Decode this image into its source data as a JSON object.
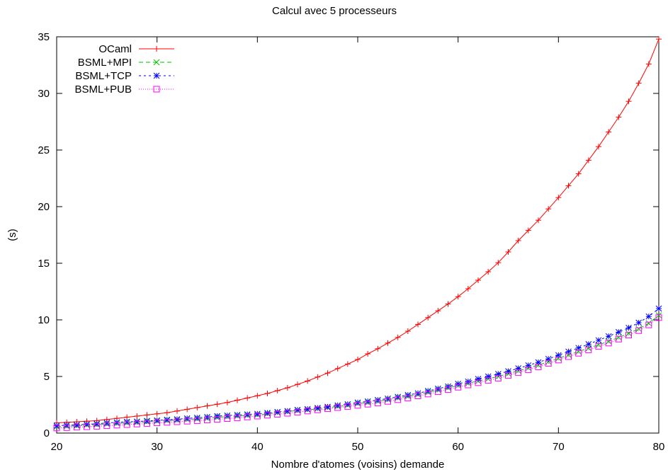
{
  "chart_data": {
    "type": "line",
    "title": "Calcul avec 5 processeurs",
    "xlabel": "Nombre d'atomes (voisins) demande",
    "ylabel": "(s)",
    "xlim": [
      20,
      80
    ],
    "ylim": [
      0,
      35
    ],
    "xticks": [
      20,
      30,
      40,
      50,
      60,
      70,
      80
    ],
    "yticks": [
      0,
      5,
      10,
      15,
      20,
      25,
      30,
      35
    ],
    "grid": false,
    "legend_position": "top-left",
    "x": [
      20,
      21,
      22,
      23,
      24,
      25,
      26,
      27,
      28,
      29,
      30,
      31,
      32,
      33,
      34,
      35,
      36,
      37,
      38,
      39,
      40,
      41,
      42,
      43,
      44,
      45,
      46,
      47,
      48,
      49,
      50,
      51,
      52,
      53,
      54,
      55,
      56,
      57,
      58,
      59,
      60,
      61,
      62,
      63,
      64,
      65,
      66,
      67,
      68,
      69,
      70,
      71,
      72,
      73,
      74,
      75,
      76,
      77,
      78,
      79,
      80
    ],
    "series": [
      {
        "name": "OCaml",
        "color": "#ff0000",
        "dash": "solid",
        "marker": "plus",
        "values": [
          0.9,
          0.95,
          1.0,
          1.05,
          1.1,
          1.2,
          1.3,
          1.4,
          1.5,
          1.6,
          1.7,
          1.8,
          1.95,
          2.1,
          2.25,
          2.4,
          2.55,
          2.7,
          2.9,
          3.1,
          3.3,
          3.5,
          3.75,
          4.0,
          4.3,
          4.6,
          4.95,
          5.3,
          5.7,
          6.1,
          6.5,
          7.0,
          7.45,
          7.95,
          8.45,
          9.0,
          9.6,
          10.2,
          10.8,
          11.4,
          12.05,
          12.75,
          13.5,
          14.25,
          15.05,
          16.0,
          17.0,
          17.9,
          18.8,
          19.8,
          20.8,
          21.85,
          22.9,
          24.1,
          25.3,
          26.6,
          27.9,
          29.3,
          30.9,
          32.6,
          34.8
        ]
      },
      {
        "name": "BSML+MPI",
        "color": "#00c000",
        "dash": "dashed",
        "marker": "x",
        "values": [
          0.55,
          0.6,
          0.65,
          0.7,
          0.75,
          0.8,
          0.85,
          0.9,
          0.95,
          1.0,
          1.05,
          1.1,
          1.15,
          1.2,
          1.25,
          1.3,
          1.4,
          1.45,
          1.5,
          1.55,
          1.6,
          1.7,
          1.8,
          1.9,
          2.0,
          2.05,
          2.15,
          2.25,
          2.35,
          2.45,
          2.6,
          2.7,
          2.8,
          2.95,
          3.1,
          3.25,
          3.4,
          3.6,
          3.8,
          4.0,
          4.2,
          4.4,
          4.6,
          4.8,
          5.0,
          5.25,
          5.5,
          5.75,
          6.0,
          6.3,
          6.6,
          6.9,
          7.2,
          7.5,
          7.8,
          8.1,
          8.45,
          8.8,
          9.2,
          9.7,
          10.4
        ]
      },
      {
        "name": "BSML+TCP",
        "color": "#0000ff",
        "dash": "dotted",
        "marker": "star",
        "values": [
          0.65,
          0.7,
          0.72,
          0.78,
          0.82,
          0.9,
          0.95,
          1.0,
          1.02,
          1.08,
          1.12,
          1.18,
          1.22,
          1.3,
          1.35,
          1.42,
          1.5,
          1.55,
          1.6,
          1.65,
          1.7,
          1.78,
          1.86,
          1.95,
          2.05,
          2.12,
          2.22,
          2.32,
          2.45,
          2.55,
          2.7,
          2.8,
          2.92,
          3.05,
          3.2,
          3.36,
          3.52,
          3.72,
          3.92,
          4.12,
          4.35,
          4.55,
          4.78,
          5.0,
          5.22,
          5.46,
          5.72,
          5.98,
          6.25,
          6.55,
          6.88,
          7.2,
          7.52,
          7.85,
          8.2,
          8.55,
          8.92,
          9.3,
          9.75,
          10.3,
          11.0
        ]
      },
      {
        "name": "BSML+PUB",
        "color": "#ff00ff",
        "dash": "finedotted",
        "marker": "square",
        "values": [
          0.45,
          0.48,
          0.52,
          0.56,
          0.6,
          0.65,
          0.7,
          0.75,
          0.8,
          0.85,
          0.9,
          0.95,
          1.0,
          1.05,
          1.1,
          1.15,
          1.22,
          1.28,
          1.35,
          1.42,
          1.5,
          1.58,
          1.66,
          1.75,
          1.85,
          1.95,
          2.05,
          2.15,
          2.25,
          2.35,
          2.45,
          2.55,
          2.65,
          2.8,
          2.95,
          3.1,
          3.28,
          3.45,
          3.65,
          3.85,
          4.05,
          4.25,
          4.45,
          4.65,
          4.85,
          5.1,
          5.35,
          5.6,
          5.85,
          6.15,
          6.45,
          6.75,
          7.05,
          7.35,
          7.65,
          7.95,
          8.3,
          8.65,
          9.05,
          9.55,
          10.2
        ]
      }
    ]
  }
}
